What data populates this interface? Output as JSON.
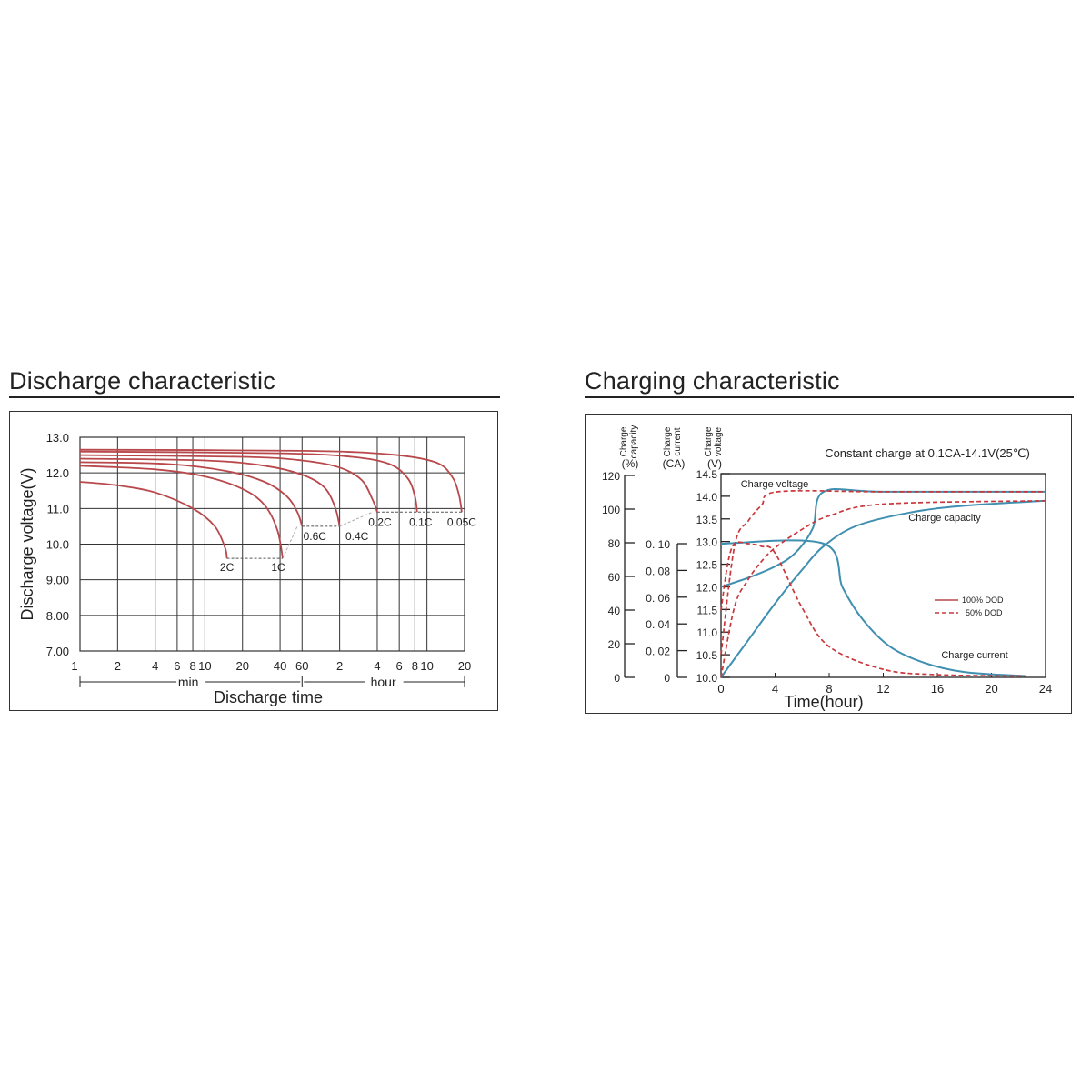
{
  "discharge": {
    "title": "Discharge characteristic",
    "chart_data": {
      "type": "line",
      "ylabel": "Discharge voltage(V)",
      "xlabel": "Discharge time",
      "ylim": [
        7.0,
        13.0
      ],
      "y_ticks": [
        "13.0",
        "12.0",
        "11.0",
        "10.0",
        "9.00",
        "8.00",
        "7.00"
      ],
      "x_scale": "log",
      "x_unit_minutes": [
        1,
        2,
        4,
        6,
        8,
        10,
        20,
        40,
        60,
        120,
        240,
        360,
        480,
        600,
        1200
      ],
      "x_tick_labels": [
        "1",
        "2",
        "4",
        "6",
        "8",
        "10",
        "20",
        "40",
        "60",
        "2",
        "4",
        "6",
        "8",
        "10",
        "20"
      ],
      "x_segment_labels": {
        "min": "min",
        "hour": "hour"
      },
      "grid": true,
      "series": [
        {
          "name": "2C",
          "end_minutes": 15,
          "points_minutes": [
            1,
            2,
            4,
            8,
            12,
            14.5,
            15
          ],
          "points_voltage": [
            11.75,
            11.65,
            11.45,
            11.0,
            10.5,
            9.9,
            9.6
          ]
        },
        {
          "name": "1C",
          "end_minutes": 42,
          "points_minutes": [
            1,
            4,
            10,
            20,
            30,
            38,
            42
          ],
          "points_voltage": [
            12.2,
            12.1,
            11.9,
            11.55,
            11.1,
            10.4,
            9.6
          ]
        },
        {
          "name": "0.6C",
          "end_minutes": 60,
          "points_minutes": [
            1,
            5,
            15,
            30,
            45,
            55,
            60
          ],
          "points_voltage": [
            12.3,
            12.25,
            12.05,
            11.75,
            11.35,
            10.9,
            10.5
          ]
        },
        {
          "name": "0.4C",
          "end_minutes": 120,
          "points_minutes": [
            1,
            10,
            30,
            60,
            90,
            110,
            120
          ],
          "points_voltage": [
            12.4,
            12.35,
            12.2,
            11.95,
            11.6,
            11.05,
            10.5
          ]
        },
        {
          "name": "0.2C",
          "end_minutes": 240,
          "points_minutes": [
            1,
            20,
            60,
            120,
            180,
            220,
            240
          ],
          "points_voltage": [
            12.5,
            12.45,
            12.35,
            12.15,
            11.8,
            11.25,
            10.9
          ]
        },
        {
          "name": "0.1C",
          "end_minutes": 500,
          "points_minutes": [
            1,
            40,
            150,
            300,
            420,
            480,
            500
          ],
          "points_voltage": [
            12.6,
            12.55,
            12.45,
            12.25,
            11.85,
            11.35,
            10.9
          ]
        },
        {
          "name": "0.05C",
          "end_minutes": 1140,
          "points_minutes": [
            1,
            60,
            300,
            700,
            950,
            1080,
            1140
          ],
          "points_voltage": [
            12.65,
            12.62,
            12.52,
            12.3,
            11.9,
            11.4,
            10.9
          ]
        }
      ],
      "cutoff_levels": [
        {
          "from": "2C",
          "to": "1C",
          "voltage": 9.6
        },
        {
          "from": "0.6C",
          "to": "0.4C",
          "voltage": 10.5
        },
        {
          "from": "0.2C",
          "to": "0.05C",
          "voltage": 10.9
        }
      ]
    }
  },
  "charging": {
    "title": "Charging characteristic",
    "chart_data": {
      "type": "line",
      "annotation": "Constant charge at 0.1CA-14.1V(25℃)",
      "xlabel": "Time(hour)",
      "xlim": [
        0,
        24
      ],
      "x_ticks": [
        "0",
        "4",
        "8",
        "12",
        "16",
        "20",
        "24"
      ],
      "axes": [
        {
          "label": "Charge capacity (%)",
          "label_lines": [
            "Charge",
            "capacity"
          ],
          "unit": "(%)",
          "range": [
            0,
            120
          ],
          "ticks": [
            "120",
            "100",
            "80",
            "60",
            "40",
            "20",
            "0"
          ]
        },
        {
          "label": "Charge current (CA)",
          "label_lines": [
            "Charge",
            "current"
          ],
          "unit": "(CA)",
          "range": [
            0,
            0.1
          ],
          "ticks": [
            "0. 10",
            "0. 08",
            "0. 06",
            "0. 04",
            "0. 02",
            "0"
          ]
        },
        {
          "label": "Charge voltage (V)",
          "label_lines": [
            "Charge",
            "voltage"
          ],
          "unit": "(V)",
          "range": [
            10.0,
            14.5
          ],
          "ticks": [
            "14.5",
            "14.0",
            "13.5",
            "13.0",
            "12.5",
            "12.0",
            "11.5",
            "11.0",
            "10.5",
            "10.0"
          ]
        }
      ],
      "curve_labels": {
        "voltage": "Charge voltage",
        "capacity": "Charge capacity",
        "current": "Charge current"
      },
      "legend": {
        "placement": "right",
        "items": [
          {
            "name": "100% DOD",
            "style": "solid"
          },
          {
            "name": "50% DOD",
            "style": "dashed"
          }
        ]
      },
      "series": [
        {
          "name": "Charge voltage",
          "dod": "100% DOD",
          "axis": "V",
          "x": [
            0,
            2,
            4,
            5.5,
            6.8,
            7.6,
            12,
            24
          ],
          "y": [
            12.0,
            12.2,
            12.45,
            12.75,
            13.3,
            14.1,
            14.1,
            14.1
          ]
        },
        {
          "name": "Charge capacity",
          "dod": "100% DOD",
          "axis": "%",
          "x": [
            0,
            2,
            4,
            6,
            7.6,
            10,
            14,
            18,
            24
          ],
          "y": [
            0,
            22,
            44,
            64,
            78,
            90,
            98,
            102,
            105
          ]
        },
        {
          "name": "Charge current",
          "dod": "100% DOD",
          "axis": "CA",
          "x": [
            0,
            7.6,
            9,
            10.5,
            12.5,
            15,
            18,
            22.5
          ],
          "y": [
            0.1,
            0.1,
            0.067,
            0.043,
            0.023,
            0.011,
            0.004,
            0.001
          ]
        },
        {
          "name": "Charge voltage",
          "dod": "50% DOD",
          "axis": "V",
          "x": [
            0,
            1,
            2,
            3,
            4.2,
            12,
            24
          ],
          "y": [
            10.5,
            12.9,
            13.45,
            13.8,
            14.1,
            14.1,
            14.1
          ]
        },
        {
          "name": "Charge capacity",
          "dod": "50% DOD",
          "axis": "%",
          "x": [
            0,
            1,
            2,
            3,
            4,
            6,
            8,
            12,
            24
          ],
          "y": [
            0,
            42,
            58,
            69,
            77,
            88,
            96,
            103,
            105
          ]
        },
        {
          "name": "Charge current",
          "dod": "50% DOD",
          "axis": "CA",
          "x": [
            0,
            0.5,
            1,
            2,
            3,
            4,
            6,
            8,
            12,
            16,
            22.5
          ],
          "y": [
            0.05,
            0.085,
            0.1,
            0.1,
            0.098,
            0.093,
            0.052,
            0.023,
            0.006,
            0.002,
            0.001
          ]
        }
      ]
    }
  },
  "colors": {
    "solid": "#b8484b",
    "dashed": "#c8383c",
    "charge_blue": "#3f8fb0",
    "axis": "#222222",
    "grid": "#333333"
  }
}
